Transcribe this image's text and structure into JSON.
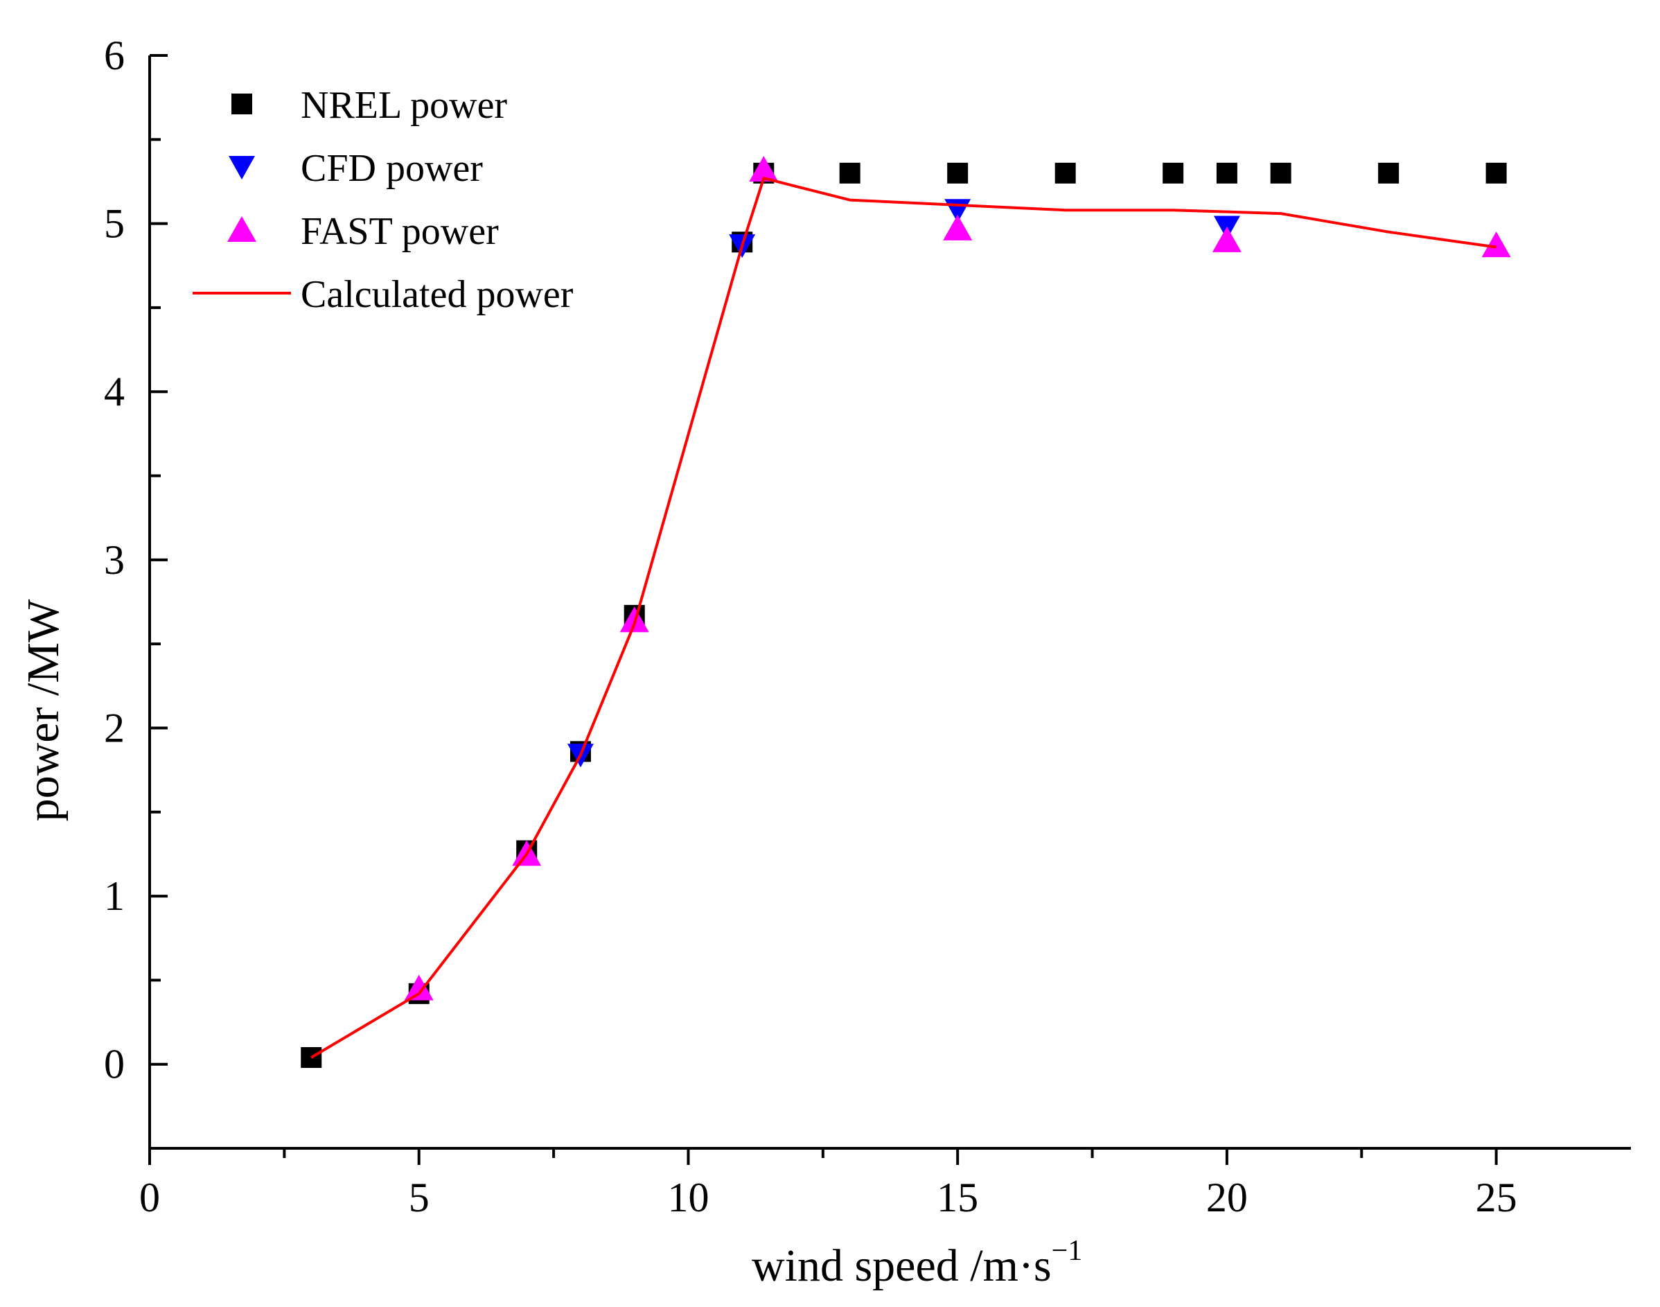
{
  "chart_data": {
    "type": "scatter",
    "xlabel": "wind speed  /m·s",
    "xlabel_sup": "−1",
    "ylabel": "power /MW",
    "xlim": [
      0,
      27.5
    ],
    "ylim": [
      -0.5,
      6
    ],
    "xticks": [
      0,
      5,
      10,
      15,
      20,
      25
    ],
    "yticks": [
      0,
      1,
      2,
      3,
      4,
      5,
      6
    ],
    "legend_position": "top-left",
    "grid": false,
    "series": [
      {
        "name": "NREL power",
        "marker": "square",
        "color": "#000000",
        "x": [
          3,
          5,
          7,
          8,
          9,
          11,
          11.4,
          13,
          15,
          17,
          19,
          20,
          21,
          23,
          25
        ],
        "y": [
          0.04,
          0.42,
          1.27,
          1.86,
          2.67,
          4.89,
          5.3,
          5.3,
          5.3,
          5.3,
          5.3,
          5.3,
          5.3,
          5.3,
          5.3
        ]
      },
      {
        "name": "CFD power",
        "marker": "triangle-down",
        "color": "#0000ff",
        "x": [
          8,
          11,
          15,
          20
        ],
        "y": [
          1.84,
          4.87,
          5.08,
          4.98
        ]
      },
      {
        "name": "FAST power",
        "marker": "triangle-up",
        "color": "#ff00ff",
        "x": [
          5,
          7,
          9,
          11.4,
          15,
          20,
          25
        ],
        "y": [
          0.45,
          1.25,
          2.64,
          5.32,
          4.97,
          4.9,
          4.87
        ]
      },
      {
        "name": "Calculated power",
        "marker": "line",
        "color": "#ff0000",
        "x": [
          3,
          5,
          7,
          8,
          9,
          11,
          11.4,
          13,
          15,
          17,
          19,
          20,
          21,
          23,
          25
        ],
        "y": [
          0.04,
          0.42,
          1.25,
          1.84,
          2.62,
          4.87,
          5.27,
          5.14,
          5.11,
          5.08,
          5.08,
          5.07,
          5.06,
          4.95,
          4.86
        ]
      }
    ]
  }
}
